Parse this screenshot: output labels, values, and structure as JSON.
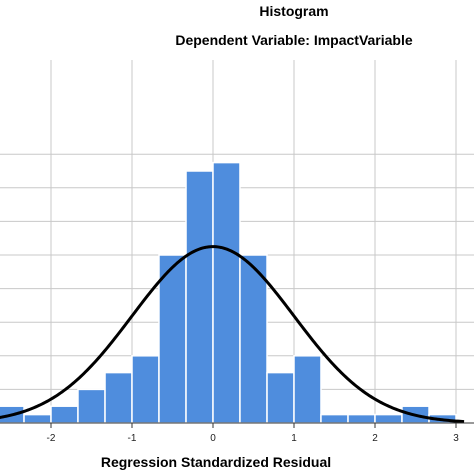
{
  "chart_data": {
    "type": "bar",
    "title": "Histogram",
    "subtitle": "Dependent Variable: ImpactVariable",
    "xlabel": "Regression Standardized Residual",
    "ylabel": "",
    "x_ticks": [
      "-2",
      "-1",
      "0",
      "1",
      "2",
      "3"
    ],
    "x_tick_values": [
      -2,
      -1,
      0,
      1,
      2,
      3
    ],
    "xlim": [
      -2.67,
      3.1
    ],
    "ylim": [
      0,
      16.7
    ],
    "y_gridlines": [
      0,
      2,
      4,
      6,
      8,
      10,
      12,
      14,
      16
    ],
    "bin_width": 0.333,
    "bins": [
      {
        "start": -2.667,
        "end": -2.333,
        "count": 1
      },
      {
        "start": -2.333,
        "end": -2.0,
        "count": 0.5
      },
      {
        "start": -2.0,
        "end": -1.667,
        "count": 1
      },
      {
        "start": -1.667,
        "end": -1.333,
        "count": 2
      },
      {
        "start": -1.333,
        "end": -1.0,
        "count": 3
      },
      {
        "start": -1.0,
        "end": -0.667,
        "count": 4
      },
      {
        "start": -0.667,
        "end": -0.333,
        "count": 10
      },
      {
        "start": -0.333,
        "end": 0.0,
        "count": 15
      },
      {
        "start": 0.0,
        "end": 0.333,
        "count": 15.5
      },
      {
        "start": 0.333,
        "end": 0.667,
        "count": 10
      },
      {
        "start": 0.667,
        "end": 1.0,
        "count": 3
      },
      {
        "start": 1.0,
        "end": 1.333,
        "count": 4
      },
      {
        "start": 1.333,
        "end": 1.667,
        "count": 0.5
      },
      {
        "start": 1.667,
        "end": 2.0,
        "count": 0.5
      },
      {
        "start": 2.0,
        "end": 2.333,
        "count": 0.5
      },
      {
        "start": 2.333,
        "end": 2.667,
        "count": 1
      },
      {
        "start": 2.667,
        "end": 3.0,
        "count": 0.5
      }
    ],
    "normal_curve": {
      "mean": 0,
      "sd": 1,
      "peak": 10.5
    },
    "bar_color": "#4f8ddd",
    "bar_edge_color": "#ffffff",
    "curve_color": "#000000",
    "grid": true,
    "grid_color": "#c8c8c8"
  }
}
